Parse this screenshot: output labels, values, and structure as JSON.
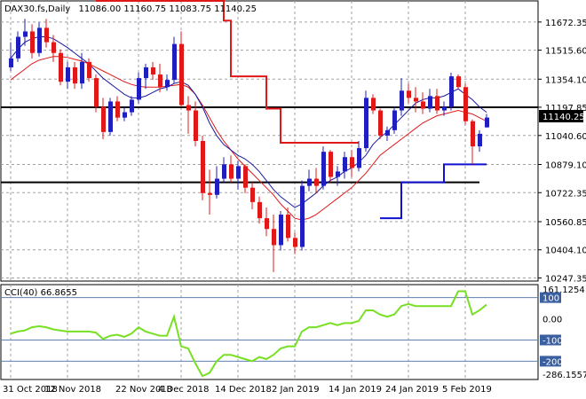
{
  "header": {
    "symbol": "DAX30.fs,Daily",
    "ohlc": "11086.00 11160.75 11083.75 11140.25"
  },
  "indicator": {
    "label": "CCI(40) 66.8655"
  },
  "colors": {
    "bull": "#1f1fc0",
    "bear": "#e01818",
    "fast_ma": "#1a1aa0",
    "slow_ma": "#e01818",
    "stop_red": "#e01818",
    "stop_blue": "#1010d0",
    "cci": "#77e022",
    "grid": "#a0a0a0",
    "level": "#6080b0"
  },
  "chart_data": {
    "type": "candlestick",
    "y_ticks": [
      "11672.35",
      "11515.60",
      "11354.10",
      "11197.85",
      "11040.60",
      "10879.10",
      "10722.35",
      "10560.85",
      "10404.10",
      "10247.35"
    ],
    "current_price": "11140.25",
    "x_ticks": [
      "31 Oct 2018",
      "12 Nov 2018",
      "22 Nov 2018",
      "4 Dec 2018",
      "14 Dec 2018",
      "2 Jan 2019",
      "14 Jan 2019",
      "24 Jan 2019",
      "5 Feb 2019"
    ],
    "ylim": [
      10230,
      11790
    ],
    "candles": [
      [
        11420,
        11560,
        11400,
        11470
      ],
      [
        11470,
        11620,
        11450,
        11590
      ],
      [
        11590,
        11690,
        11540,
        11620
      ],
      [
        11620,
        11660,
        11470,
        11500
      ],
      [
        11500,
        11670,
        11480,
        11640
      ],
      [
        11640,
        11690,
        11530,
        11560
      ],
      [
        11560,
        11600,
        11450,
        11500
      ],
      [
        11500,
        11520,
        11320,
        11340
      ],
      [
        11340,
        11450,
        11300,
        11420
      ],
      [
        11420,
        11450,
        11300,
        11330
      ],
      [
        11330,
        11500,
        11300,
        11450
      ],
      [
        11450,
        11470,
        11340,
        11360
      ],
      [
        11360,
        11380,
        11170,
        11200
      ],
      [
        11200,
        11250,
        11020,
        11060
      ],
      [
        11060,
        11250,
        11040,
        11230
      ],
      [
        11230,
        11260,
        11120,
        11140
      ],
      [
        11140,
        11200,
        11120,
        11170
      ],
      [
        11170,
        11260,
        11150,
        11240
      ],
      [
        11240,
        11390,
        11220,
        11360
      ],
      [
        11360,
        11440,
        11300,
        11420
      ],
      [
        11420,
        11450,
        11350,
        11380
      ],
      [
        11380,
        11440,
        11280,
        11310
      ],
      [
        11310,
        11380,
        11290,
        11350
      ],
      [
        11350,
        11590,
        11330,
        11550
      ],
      [
        11550,
        11620,
        11200,
        11210
      ],
      [
        11210,
        11260,
        11050,
        11180
      ],
      [
        11180,
        11230,
        10980,
        11010
      ],
      [
        11010,
        11040,
        10680,
        10720
      ],
      [
        10720,
        10850,
        10600,
        10710
      ],
      [
        10710,
        10870,
        10690,
        10800
      ],
      [
        10800,
        10920,
        10780,
        10880
      ],
      [
        10880,
        10930,
        10780,
        10800
      ],
      [
        10800,
        10900,
        10740,
        10870
      ],
      [
        10870,
        10880,
        10720,
        10750
      ],
      [
        10750,
        10780,
        10630,
        10670
      ],
      [
        10670,
        10700,
        10550,
        10580
      ],
      [
        10580,
        10640,
        10480,
        10520
      ],
      [
        10520,
        10600,
        10280,
        10430
      ],
      [
        10430,
        10620,
        10400,
        10600
      ],
      [
        10600,
        10640,
        10450,
        10470
      ],
      [
        10470,
        10500,
        10380,
        10420
      ],
      [
        10420,
        10790,
        10400,
        10760
      ],
      [
        10760,
        10850,
        10730,
        10800
      ],
      [
        10800,
        10860,
        10720,
        10760
      ],
      [
        10760,
        10980,
        10740,
        10950
      ],
      [
        10950,
        10960,
        10780,
        10810
      ],
      [
        10810,
        10870,
        10760,
        10840
      ],
      [
        10840,
        10950,
        10800,
        10920
      ],
      [
        10920,
        10960,
        10810,
        10860
      ],
      [
        10860,
        11010,
        10840,
        10970
      ],
      [
        10970,
        11290,
        10950,
        11250
      ],
      [
        11250,
        11270,
        11160,
        11180
      ],
      [
        11180,
        11190,
        11020,
        11040
      ],
      [
        11040,
        11090,
        11010,
        11070
      ],
      [
        11070,
        11200,
        11050,
        11180
      ],
      [
        11180,
        11360,
        11150,
        11290
      ],
      [
        11290,
        11330,
        11220,
        11250
      ],
      [
        11250,
        11310,
        11170,
        11230
      ],
      [
        11230,
        11280,
        11160,
        11190
      ],
      [
        11190,
        11300,
        11170,
        11260
      ],
      [
        11260,
        11300,
        11160,
        11180
      ],
      [
        11180,
        11230,
        11150,
        11200
      ],
      [
        11200,
        11390,
        11180,
        11370
      ],
      [
        11370,
        11380,
        11300,
        11310
      ],
      [
        11310,
        11330,
        11100,
        11120
      ],
      [
        11120,
        11130,
        10880,
        10980
      ],
      [
        10980,
        11070,
        10950,
        11050
      ],
      [
        11086,
        11160.75,
        11083.75,
        11140.25
      ]
    ],
    "fast_ma": [
      11470,
      11520,
      11560,
      11580,
      11590,
      11590,
      11580,
      11555,
      11530,
      11500,
      11470,
      11440,
      11400,
      11360,
      11330,
      11300,
      11270,
      11250,
      11250,
      11260,
      11280,
      11300,
      11310,
      11330,
      11340,
      11320,
      11270,
      11200,
      11110,
      11040,
      10990,
      10960,
      10930,
      10910,
      10880,
      10840,
      10790,
      10740,
      10700,
      10670,
      10640,
      10660,
      10690,
      10720,
      10760,
      10790,
      10810,
      10840,
      10860,
      10890,
      10930,
      10990,
      11030,
      11060,
      11100,
      11140,
      11180,
      11220,
      11240,
      11250,
      11250,
      11260,
      11280,
      11300,
      11270,
      11240,
      11200,
      11170
    ],
    "slow_ma": [
      11350,
      11380,
      11410,
      11440,
      11460,
      11470,
      11480,
      11480,
      11475,
      11465,
      11455,
      11440,
      11420,
      11400,
      11380,
      11360,
      11340,
      11325,
      11315,
      11310,
      11310,
      11310,
      11315,
      11320,
      11325,
      11310,
      11270,
      11210,
      11140,
      11070,
      11010,
      10960,
      10910,
      10870,
      10830,
      10790,
      10750,
      10710,
      10660,
      10620,
      10580,
      10570,
      10580,
      10600,
      10630,
      10660,
      10690,
      10720,
      10750,
      10790,
      10830,
      10880,
      10930,
      10960,
      10990,
      11020,
      11050,
      11080,
      11110,
      11130,
      11150,
      11160,
      11170,
      11180,
      11170,
      11160,
      11140,
      11120
    ],
    "stop_red": [
      [
        12,
        11790
      ],
      [
        30,
        11790
      ],
      [
        30,
        11680
      ],
      [
        31,
        11680
      ],
      [
        31,
        11370
      ],
      [
        36,
        11370
      ],
      [
        36,
        11190
      ],
      [
        38,
        11190
      ],
      [
        38,
        11000
      ],
      [
        49,
        11000
      ]
    ],
    "stop_blue": [
      [
        52,
        10580
      ],
      [
        55,
        10580
      ],
      [
        55,
        10780
      ],
      [
        61,
        10780
      ],
      [
        61,
        10880
      ],
      [
        67,
        10880
      ]
    ],
    "h_lines": [
      11197.85,
      10780
    ],
    "cci": {
      "y_ticks": [
        "161.1254",
        "100",
        "0.00",
        "-100",
        "-200",
        "-286.1557"
      ],
      "levels": [
        100,
        -100,
        -200
      ],
      "ylim": [
        -286.1557,
        161.1254
      ],
      "values": [
        -70,
        -60,
        -55,
        -40,
        -35,
        -40,
        -50,
        -55,
        -60,
        -60,
        -60,
        -60,
        -65,
        -95,
        -80,
        -75,
        -85,
        -70,
        -40,
        -60,
        -70,
        -80,
        -80,
        10,
        -130,
        -140,
        -210,
        -270,
        -255,
        -200,
        -170,
        -170,
        -180,
        -190,
        -200,
        -180,
        -190,
        -170,
        -140,
        -130,
        -130,
        -60,
        -40,
        -40,
        -30,
        -20,
        -30,
        -20,
        -20,
        -10,
        40,
        40,
        20,
        10,
        20,
        60,
        70,
        60,
        60,
        60,
        60,
        60,
        60,
        130,
        130,
        20,
        40,
        66.87
      ]
    }
  }
}
